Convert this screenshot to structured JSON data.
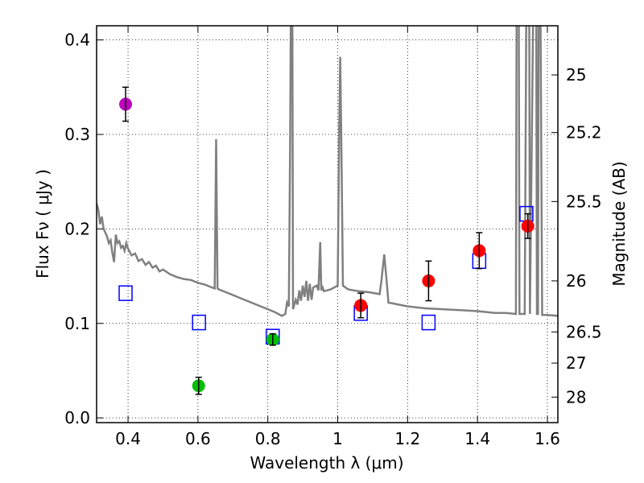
{
  "chart_data": {
    "type": "scatter",
    "title": "",
    "xlabel": "Wavelength  λ (μm)",
    "ylabel": "Flux  Fν  ( μJy )",
    "ylabel_right": "Magnitude (AB)",
    "xlim": [
      0.31,
      1.63
    ],
    "ylim": [
      -0.005,
      0.415
    ],
    "grid": "dotted",
    "x_ticks": [
      0.4,
      0.6,
      0.8,
      1.0,
      1.2,
      1.4,
      1.6
    ],
    "x_tick_labels": [
      "0.4",
      "0.6",
      "0.8",
      "1",
      "1.2",
      "1.4",
      "1.6"
    ],
    "y_ticks": [
      0.0,
      0.1,
      0.2,
      0.3,
      0.4
    ],
    "y_tick_labels": [
      "0.0",
      "0.1",
      "0.2",
      "0.3",
      "0.4"
    ],
    "right_axis_ticks": [
      {
        "label": "25",
        "flux": 0.363
      },
      {
        "label": "25.2",
        "flux": 0.302
      },
      {
        "label": "25.5",
        "flux": 0.229
      },
      {
        "label": "26",
        "flux": 0.145
      },
      {
        "label": "26.5",
        "flux": 0.091
      },
      {
        "label": "27",
        "flux": 0.058
      },
      {
        "label": "28",
        "flux": 0.022
      }
    ],
    "observed_points": [
      {
        "band": "violet",
        "x": 0.393,
        "y": 0.332,
        "err": 0.018,
        "color": "#bf00bf"
      },
      {
        "band": "green",
        "x": 0.602,
        "y": 0.034,
        "err": 0.009,
        "color": "#00bf00"
      },
      {
        "band": "green",
        "x": 0.814,
        "y": 0.083,
        "err": 0.006,
        "color": "#00bf00"
      },
      {
        "band": "red",
        "x": 1.066,
        "y": 0.119,
        "err": 0.013,
        "color": "#ff0000"
      },
      {
        "band": "red",
        "x": 1.26,
        "y": 0.145,
        "err": 0.021,
        "color": "#ff0000"
      },
      {
        "band": "red",
        "x": 1.405,
        "y": 0.177,
        "err": 0.019,
        "color": "#ff0000"
      },
      {
        "band": "red",
        "x": 1.544,
        "y": 0.203,
        "err": 0.013,
        "color": "#ff0000"
      }
    ],
    "model_points": [
      {
        "x": 0.393,
        "y": 0.132
      },
      {
        "x": 0.603,
        "y": 0.101
      },
      {
        "x": 0.814,
        "y": 0.086
      },
      {
        "x": 1.066,
        "y": 0.111
      },
      {
        "x": 1.26,
        "y": 0.101
      },
      {
        "x": 1.405,
        "y": 0.166
      },
      {
        "x": 1.54,
        "y": 0.216
      }
    ],
    "model_spectrum": {
      "color": "#808080",
      "points": [
        [
          0.31,
          0.227
        ],
        [
          0.315,
          0.22
        ],
        [
          0.32,
          0.205
        ],
        [
          0.325,
          0.213
        ],
        [
          0.33,
          0.2
        ],
        [
          0.335,
          0.196
        ],
        [
          0.34,
          0.192
        ],
        [
          0.345,
          0.185
        ],
        [
          0.35,
          0.188
        ],
        [
          0.355,
          0.175
        ],
        [
          0.36,
          0.165
        ],
        [
          0.365,
          0.194
        ],
        [
          0.37,
          0.185
        ],
        [
          0.375,
          0.187
        ],
        [
          0.38,
          0.18
        ],
        [
          0.385,
          0.182
        ],
        [
          0.39,
          0.177
        ],
        [
          0.395,
          0.185
        ],
        [
          0.4,
          0.179
        ],
        [
          0.41,
          0.172
        ],
        [
          0.42,
          0.174
        ],
        [
          0.43,
          0.166
        ],
        [
          0.44,
          0.168
        ],
        [
          0.45,
          0.162
        ],
        [
          0.46,
          0.165
        ],
        [
          0.47,
          0.159
        ],
        [
          0.48,
          0.161
        ],
        [
          0.49,
          0.155
        ],
        [
          0.5,
          0.157
        ],
        [
          0.52,
          0.152
        ],
        [
          0.54,
          0.149
        ],
        [
          0.56,
          0.147
        ],
        [
          0.58,
          0.146
        ],
        [
          0.6,
          0.143
        ],
        [
          0.62,
          0.141
        ],
        [
          0.64,
          0.138
        ],
        [
          0.648,
          0.137
        ],
        [
          0.652,
          0.295
        ],
        [
          0.656,
          0.137
        ],
        [
          0.66,
          0.136
        ],
        [
          0.68,
          0.133
        ],
        [
          0.7,
          0.13
        ],
        [
          0.72,
          0.127
        ],
        [
          0.74,
          0.124
        ],
        [
          0.76,
          0.121
        ],
        [
          0.78,
          0.118
        ],
        [
          0.8,
          0.115
        ],
        [
          0.82,
          0.112
        ],
        [
          0.84,
          0.108
        ],
        [
          0.85,
          0.11
        ],
        [
          0.855,
          0.122
        ],
        [
          0.86,
          0.118
        ],
        [
          0.864,
          0.3
        ],
        [
          0.866,
          0.45
        ],
        [
          0.87,
          0.45
        ],
        [
          0.872,
          0.115
        ],
        [
          0.88,
          0.125
        ],
        [
          0.885,
          0.12
        ],
        [
          0.89,
          0.135
        ],
        [
          0.895,
          0.124
        ],
        [
          0.9,
          0.14
        ],
        [
          0.905,
          0.128
        ],
        [
          0.91,
          0.145
        ],
        [
          0.915,
          0.124
        ],
        [
          0.92,
          0.142
        ],
        [
          0.925,
          0.125
        ],
        [
          0.93,
          0.138
        ],
        [
          0.94,
          0.14
        ],
        [
          0.945,
          0.135
        ],
        [
          0.95,
          0.186
        ],
        [
          0.953,
          0.135
        ],
        [
          0.955,
          0.14
        ],
        [
          0.96,
          0.134
        ],
        [
          0.97,
          0.135
        ],
        [
          0.98,
          0.136
        ],
        [
          0.99,
          0.138
        ],
        [
          1.0,
          0.14
        ],
        [
          1.004,
          0.3
        ],
        [
          1.007,
          0.382
        ],
        [
          1.01,
          0.3
        ],
        [
          1.015,
          0.14
        ],
        [
          1.03,
          0.136
        ],
        [
          1.06,
          0.134
        ],
        [
          1.09,
          0.133
        ],
        [
          1.12,
          0.131
        ],
        [
          1.125,
          0.145
        ],
        [
          1.133,
          0.173
        ],
        [
          1.14,
          0.145
        ],
        [
          1.145,
          0.122
        ],
        [
          1.16,
          0.121
        ],
        [
          1.2,
          0.118
        ],
        [
          1.25,
          0.116
        ],
        [
          1.3,
          0.115
        ],
        [
          1.35,
          0.114
        ],
        [
          1.4,
          0.113
        ],
        [
          1.45,
          0.111
        ],
        [
          1.48,
          0.111
        ],
        [
          1.51,
          0.11
        ],
        [
          1.512,
          0.45
        ],
        [
          1.518,
          0.45
        ],
        [
          1.52,
          0.11
        ],
        [
          1.535,
          0.11
        ],
        [
          1.54,
          0.45
        ],
        [
          1.548,
          0.45
        ],
        [
          1.55,
          0.11
        ],
        [
          1.56,
          0.45
        ],
        [
          1.568,
          0.45
        ],
        [
          1.57,
          0.11
        ],
        [
          1.573,
          0.11
        ],
        [
          1.575,
          0.45
        ],
        [
          1.58,
          0.45
        ],
        [
          1.585,
          0.109
        ],
        [
          1.6,
          0.109
        ],
        [
          1.63,
          0.108
        ]
      ]
    }
  }
}
